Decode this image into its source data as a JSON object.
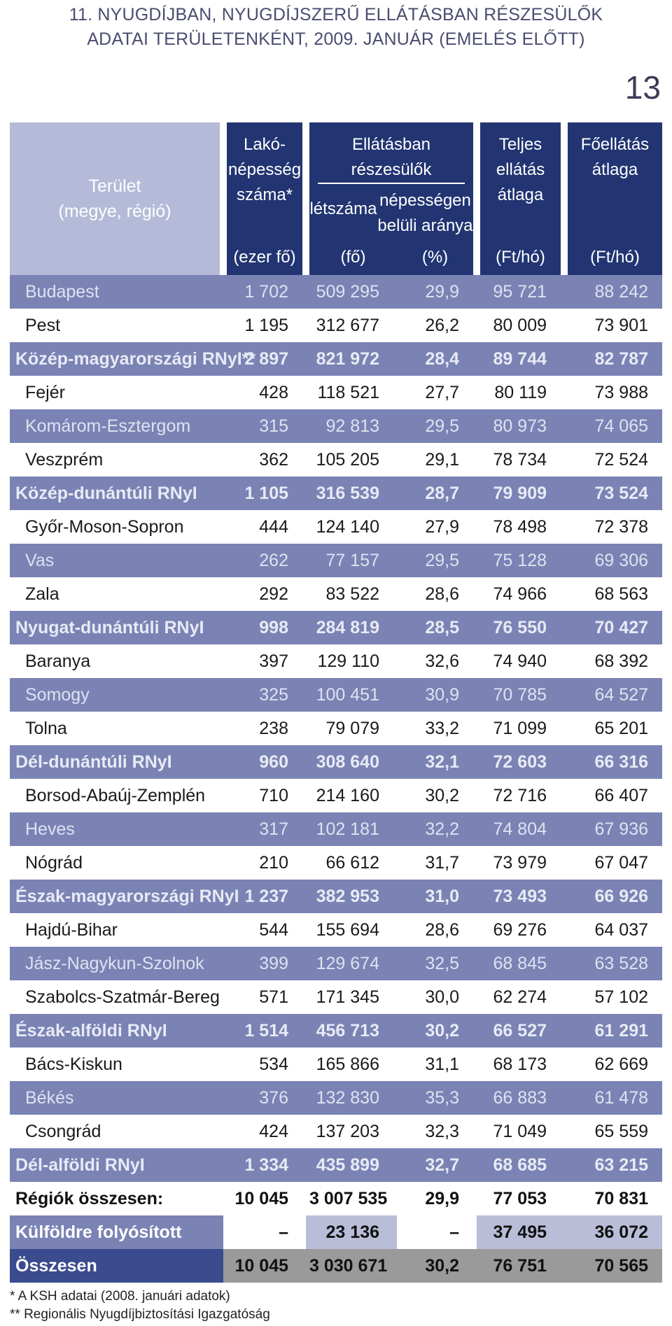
{
  "title": {
    "line1": "11. NYUGDÍJBAN, NYUGDÍJSZERŰ ELLÁTÁSBAN RÉSZESÜLŐK",
    "line2": "ADATAI TERÜLETENKÉNT, 2009. JANUÁR (EMELÉS ELŐTT)"
  },
  "page_number": "13",
  "header": {
    "area_line1": "Terület",
    "area_line2": "(megye, régió)",
    "pop_line1": "Lakó-",
    "pop_line2": "népesség",
    "pop_line3": "száma*",
    "group": "Ellátásban részesülők",
    "count": "létszáma",
    "ratio_line1": "népességen",
    "ratio_line2": "belüli aránya",
    "total_line1": "Teljes",
    "total_line2": "ellátás",
    "total_line3": "átlaga",
    "main_line1": "Főellátás",
    "main_line2": "átlaga",
    "unit_pop": "(ezer fő)",
    "unit_count": "(fő)",
    "unit_ratio": "(%)",
    "unit_total": "(Ft/hó)",
    "unit_main": "(Ft/hó)"
  },
  "rows": [
    {
      "name": "Budapest",
      "pop": "1 702",
      "count": "509 295",
      "ratio": "29,9",
      "total": "95 721",
      "main": "88 242"
    },
    {
      "name": "Pest",
      "pop": "1 195",
      "count": "312 677",
      "ratio": "26,2",
      "total": "80 009",
      "main": "73 901"
    },
    {
      "name": "Közép-magyarországi RNyI**",
      "pop": "2 897",
      "count": "821 972",
      "ratio": "28,4",
      "total": "89 744",
      "main": "82 787"
    },
    {
      "name": "Fejér",
      "pop": "428",
      "count": "118 521",
      "ratio": "27,7",
      "total": "80 119",
      "main": "73 988"
    },
    {
      "name": "Komárom-Esztergom",
      "pop": "315",
      "count": "92 813",
      "ratio": "29,5",
      "total": "80 973",
      "main": "74 065"
    },
    {
      "name": "Veszprém",
      "pop": "362",
      "count": "105 205",
      "ratio": "29,1",
      "total": "78 734",
      "main": "72 524"
    },
    {
      "name": "Közép-dunántúli RNyI",
      "pop": "1 105",
      "count": "316 539",
      "ratio": "28,7",
      "total": "79 909",
      "main": "73 524"
    },
    {
      "name": "Győr-Moson-Sopron",
      "pop": "444",
      "count": "124 140",
      "ratio": "27,9",
      "total": "78 498",
      "main": "72 378"
    },
    {
      "name": "Vas",
      "pop": "262",
      "count": "77 157",
      "ratio": "29,5",
      "total": "75 128",
      "main": "69 306"
    },
    {
      "name": "Zala",
      "pop": "292",
      "count": "83 522",
      "ratio": "28,6",
      "total": "74 966",
      "main": "68 563"
    },
    {
      "name": "Nyugat-dunántúli RNyI",
      "pop": "998",
      "count": "284 819",
      "ratio": "28,5",
      "total": "76 550",
      "main": "70 427"
    },
    {
      "name": "Baranya",
      "pop": "397",
      "count": "129 110",
      "ratio": "32,6",
      "total": "74 940",
      "main": "68 392"
    },
    {
      "name": "Somogy",
      "pop": "325",
      "count": "100 451",
      "ratio": "30,9",
      "total": "70 785",
      "main": "64 527"
    },
    {
      "name": "Tolna",
      "pop": "238",
      "count": "79 079",
      "ratio": "33,2",
      "total": "71 099",
      "main": "65 201"
    },
    {
      "name": "Dél-dunántúli RNyI",
      "pop": "960",
      "count": "308 640",
      "ratio": "32,1",
      "total": "72 603",
      "main": "66 316"
    },
    {
      "name": "Borsod-Abaúj-Zemplén",
      "pop": "710",
      "count": "214 160",
      "ratio": "30,2",
      "total": "72 716",
      "main": "66 407"
    },
    {
      "name": "Heves",
      "pop": "317",
      "count": "102 181",
      "ratio": "32,2",
      "total": "74 804",
      "main": "67 936"
    },
    {
      "name": "Nógrád",
      "pop": "210",
      "count": "66 612",
      "ratio": "31,7",
      "total": "73 979",
      "main": "67 047"
    },
    {
      "name": "Észak-magyarországi RNyI",
      "pop": "1 237",
      "count": "382 953",
      "ratio": "31,0",
      "total": "73 493",
      "main": "66 926"
    },
    {
      "name": "Hajdú-Bihar",
      "pop": "544",
      "count": "155 694",
      "ratio": "28,6",
      "total": "69 276",
      "main": "64 037"
    },
    {
      "name": "Jász-Nagykun-Szolnok",
      "pop": "399",
      "count": "129 674",
      "ratio": "32,5",
      "total": "68 845",
      "main": "63 528"
    },
    {
      "name": "Szabolcs-Szatmár-Bereg",
      "pop": "571",
      "count": "171 345",
      "ratio": "30,0",
      "total": "62 274",
      "main": "57 102"
    },
    {
      "name": "Észak-alföldi RNyI",
      "pop": "1 514",
      "count": "456 713",
      "ratio": "30,2",
      "total": "66 527",
      "main": "61 291"
    },
    {
      "name": "Bács-Kiskun",
      "pop": "534",
      "count": "165 866",
      "ratio": "31,1",
      "total": "68 173",
      "main": "62 669"
    },
    {
      "name": "Békés",
      "pop": "376",
      "count": "132 830",
      "ratio": "35,3",
      "total": "66 883",
      "main": "61 478"
    },
    {
      "name": "Csongrád",
      "pop": "424",
      "count": "137 203",
      "ratio": "32,3",
      "total": "71 049",
      "main": "65 559"
    },
    {
      "name": "Dél-alföldi RNyI",
      "pop": "1 334",
      "count": "435 899",
      "ratio": "32,7",
      "total": "68 685",
      "main": "63 215"
    },
    {
      "name": "Régiók összesen:",
      "pop": "10 045",
      "count": "3 007 535",
      "ratio": "29,9",
      "total": "77 053",
      "main": "70 831"
    },
    {
      "name": "Külföldre folyósított",
      "pop": "–",
      "count": "23 136",
      "ratio": "–",
      "total": "37 495",
      "main": "36 072"
    },
    {
      "name": "Összesen",
      "pop": "10 045",
      "count": "3 030 671",
      "ratio": "30,2",
      "total": "76 751",
      "main": "70 565"
    }
  ],
  "notes": {
    "line1": "* A KSH adatai (2008. januári adatok)",
    "line2": "** Regionális Nyugdíjbiztosítási Igazgatóság"
  },
  "colors": {
    "header_dark": "#223572",
    "header_light": "#b5bad8",
    "band": "#7a83b4",
    "total_dark": "#3a4b8e",
    "total_grey": "#9a9a9a"
  }
}
